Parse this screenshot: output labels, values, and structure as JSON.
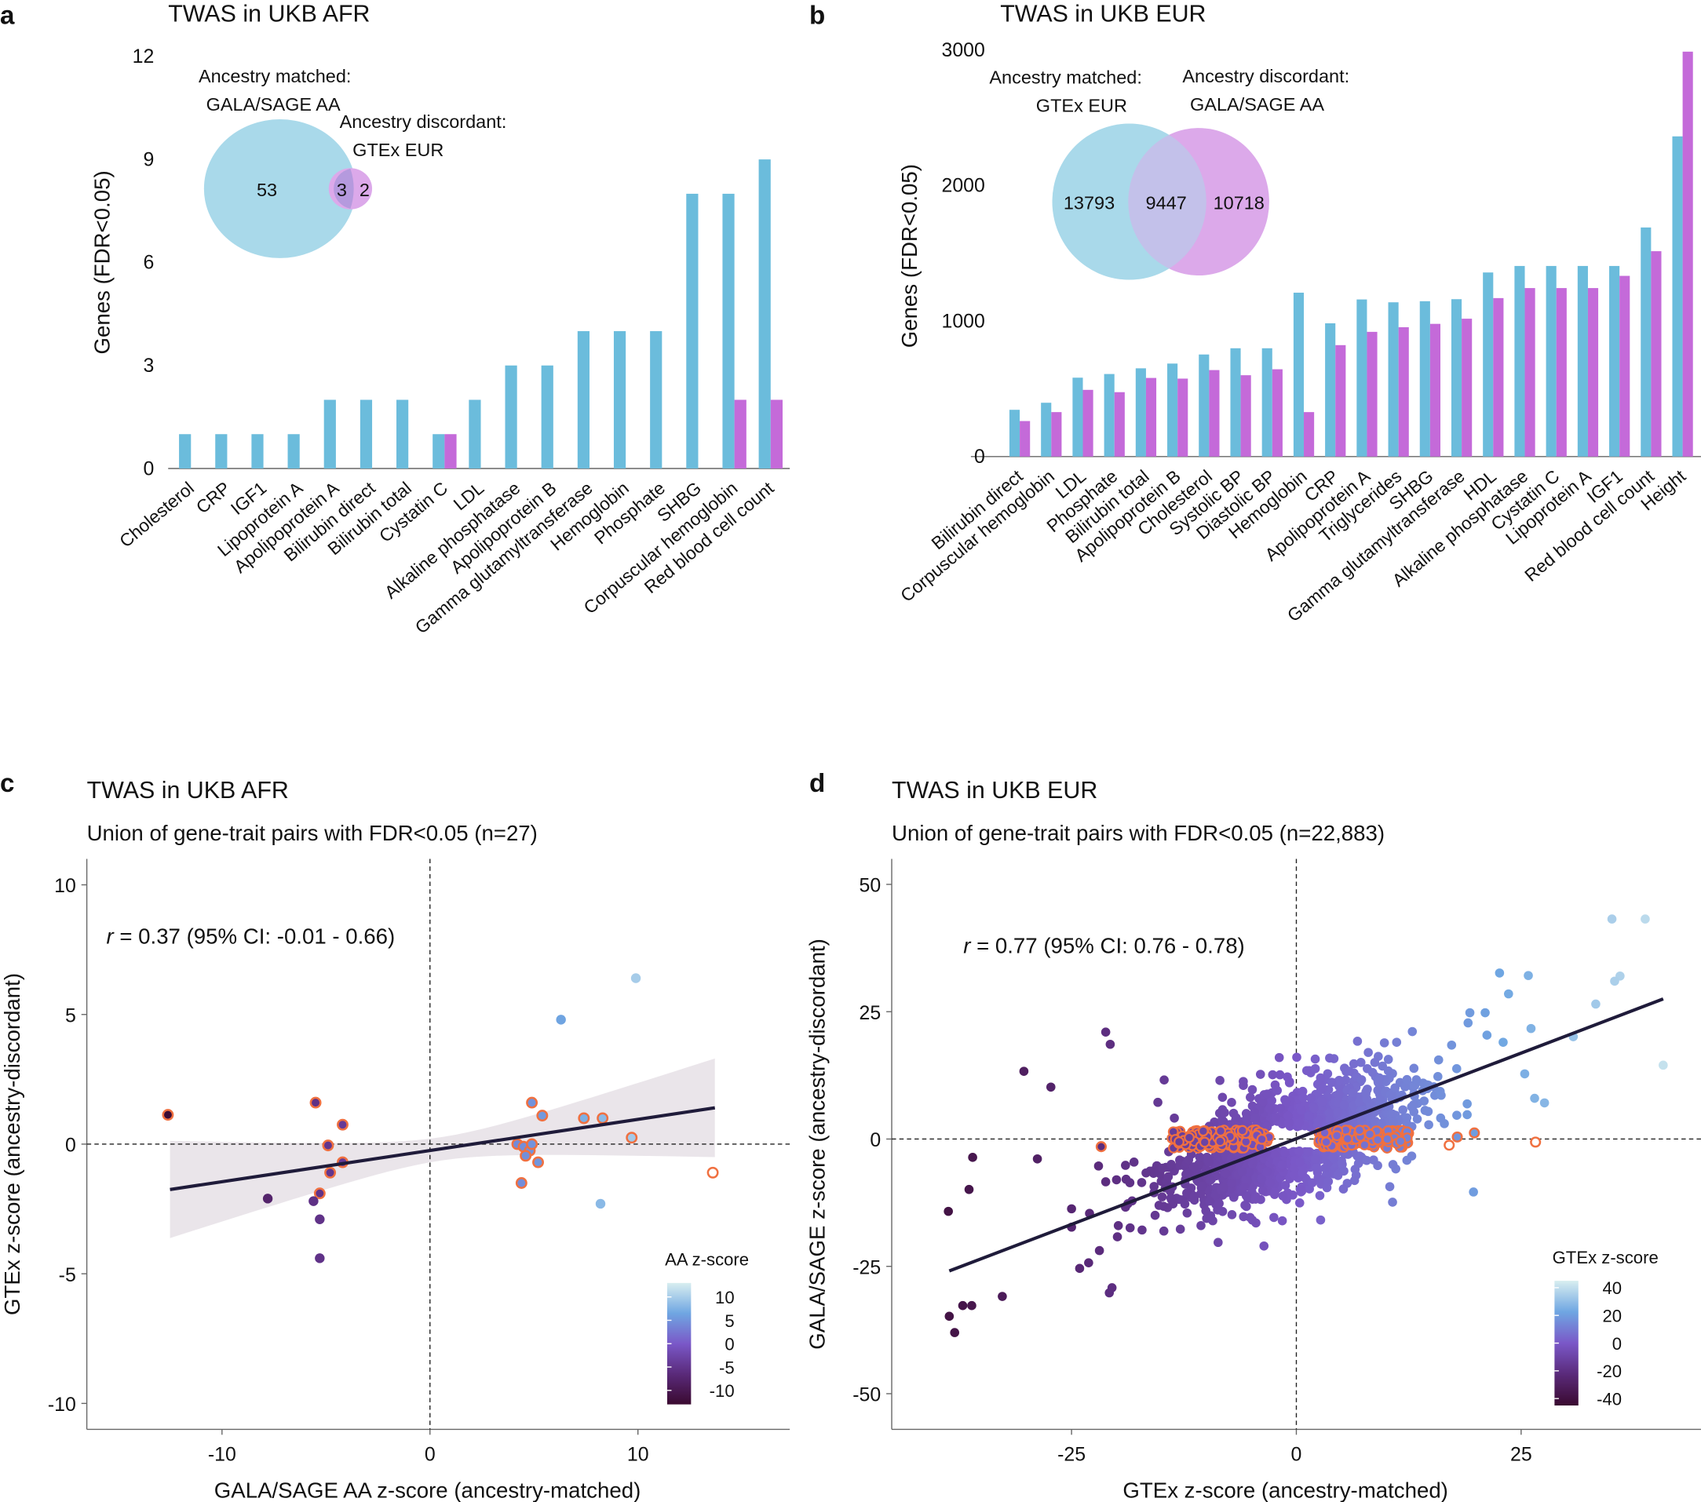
{
  "colors": {
    "matched": "#6bbcdc",
    "discordant": "#c46ad9",
    "venn_matched": "#a9d9ea",
    "venn_discordant": "#dca9ea",
    "venn_overlap": "#b59ade",
    "outline": "#f07040",
    "line": "#1f1b3a",
    "ci_band": "#e6e0e6"
  },
  "colorscale": [
    "#3a0a30",
    "#5a2a7a",
    "#7a58c8",
    "#6fa6e2",
    "#d8eef0"
  ],
  "chart_data": [
    {
      "panel": "a",
      "type": "bar",
      "title": "TWAS in UKB AFR",
      "ylabel": "Genes (FDR<0.05)",
      "xlabel": "",
      "ylim": [
        0,
        12
      ],
      "yticks": [
        "0",
        "3",
        "6",
        "9",
        "12"
      ],
      "categories": [
        "Cholesterol",
        "CRP",
        "IGF1",
        "Lipoprotein A",
        "Apolipoprotein A",
        "Bilirubin direct",
        "Bilirubin total",
        "Cystatin C",
        "LDL",
        "Alkaline phosphatase",
        "Apolipoprotein B",
        "Gamma glutamyltransferase",
        "Hemoglobin",
        "Phosphate",
        "SHBG",
        "Corpuscular hemoglobin",
        "Red blood cell count"
      ],
      "series": [
        {
          "key": "matched",
          "values": [
            1,
            1,
            1,
            1,
            2,
            2,
            2,
            1,
            2,
            3,
            3,
            4,
            4,
            4,
            8,
            8,
            9
          ]
        },
        {
          "key": "discordant",
          "values": [
            0,
            0,
            0,
            0,
            0,
            0,
            0,
            1,
            0,
            0,
            0,
            0,
            0,
            0,
            0,
            2,
            2
          ]
        }
      ],
      "venn": {
        "matched_label": "Ancestry matched:",
        "matched_source": "GALA/SAGE AA",
        "discordant_label": "Ancestry discordant:",
        "discordant_source": "GTEx EUR",
        "matched_only": "53",
        "overlap": "3",
        "discordant_only": "2"
      }
    },
    {
      "panel": "b",
      "type": "bar",
      "title": "TWAS in UKB EUR",
      "ylabel": "Genes (FDR<0.05)",
      "xlabel": "",
      "ylim": [
        0,
        3000
      ],
      "yticks": [
        "0",
        "1000",
        "2000",
        "3000"
      ],
      "categories": [
        "Bilirubin direct",
        "Corpuscular hemoglobin",
        "LDL",
        "Phosphate",
        "Bilirubin total",
        "Apolipoprotein B",
        "Cholesterol",
        "Systolic BP",
        "Diastolic BP",
        "Hemoglobin",
        "CRP",
        "Apolipoprotein A",
        "Triglycerides",
        "SHBG",
        "Gamma glutamyltransferase",
        "HDL",
        "Alkaline phosphatase",
        "Cystatin C",
        "Lipoprotein A",
        "IGF1",
        "Red blood cell count",
        "Height"
      ],
      "series": [
        {
          "key": "matched",
          "values": [
            345,
            397,
            582,
            609,
            651,
            686,
            753,
            799,
            799,
            1209,
            983,
            1159,
            1138,
            1146,
            1161,
            1358,
            1406,
            1406,
            1406,
            1406,
            1690,
            2362
          ]
        },
        {
          "key": "discordant",
          "values": [
            262,
            328,
            492,
            475,
            580,
            575,
            638,
            600,
            644,
            328,
            822,
            920,
            954,
            979,
            1017,
            1169,
            1243,
            1243,
            1243,
            1333,
            1515,
            2987
          ]
        }
      ],
      "venn": {
        "matched_label": "Ancestry matched:",
        "matched_source": "GTEx EUR",
        "discordant_label": "Ancestry discordant:",
        "discordant_source": "GALA/SAGE AA",
        "matched_only": "13793",
        "overlap": "9447",
        "discordant_only": "10718"
      }
    },
    {
      "panel": "c",
      "type": "scatter",
      "title": "TWAS in UKB AFR",
      "subtitle": "Union of gene-trait pairs with FDR<0.05 (n=27)",
      "xlabel": "GALA/SAGE AA  z-score (ancestry-matched)",
      "ylabel": "GTEx  z-score (ancestry-discordant)",
      "xlim": [
        -16.5,
        17.3
      ],
      "ylim": [
        -11,
        11
      ],
      "xticks": [
        -10,
        0,
        10
      ],
      "yticks": [
        10,
        5,
        0,
        -5,
        -10
      ],
      "annotation": {
        "r_label": "r",
        "text": " = 0.37  (95% CI: -0.01 - 0.66)"
      },
      "legend": {
        "title": "AA z-score",
        "ticks": [
          10,
          5,
          0,
          -5,
          -10
        ],
        "range": [
          -13,
          13
        ]
      },
      "regression": {
        "x": [
          -12.5,
          13.7
        ],
        "y": [
          -1.75,
          1.4
        ]
      },
      "points": [
        {
          "x": -12.6,
          "y": 1.13,
          "o": 1
        },
        {
          "x": -5.5,
          "y": 1.6,
          "o": 1
        },
        {
          "x": -4.2,
          "y": 0.75,
          "o": 1
        },
        {
          "x": -4.9,
          "y": -0.05,
          "o": 1
        },
        {
          "x": -4.8,
          "y": -1.1,
          "o": 1
        },
        {
          "x": -4.2,
          "y": -0.7,
          "o": 1
        },
        {
          "x": -5.3,
          "y": -1.9,
          "o": 1
        },
        {
          "x": -7.8,
          "y": -2.1,
          "o": 0
        },
        {
          "x": -5.6,
          "y": -2.2,
          "o": 0
        },
        {
          "x": -5.3,
          "y": -2.9,
          "o": 0
        },
        {
          "x": -5.3,
          "y": -4.4,
          "o": 0
        },
        {
          "x": 9.9,
          "y": 6.4,
          "o": 0
        },
        {
          "x": 6.3,
          "y": 4.8,
          "o": 0
        },
        {
          "x": 4.9,
          "y": 1.6,
          "o": 1
        },
        {
          "x": 5.4,
          "y": 1.1,
          "o": 1
        },
        {
          "x": 7.4,
          "y": 1.0,
          "o": 1
        },
        {
          "x": 8.3,
          "y": 1.0,
          "o": 1
        },
        {
          "x": 9.7,
          "y": 0.25,
          "o": 1
        },
        {
          "x": 4.2,
          "y": 0.0,
          "o": 1
        },
        {
          "x": 4.5,
          "y": -0.1,
          "o": 1
        },
        {
          "x": 4.8,
          "y": -0.25,
          "o": 1
        },
        {
          "x": 4.9,
          "y": 0.0,
          "o": 1
        },
        {
          "x": 4.6,
          "y": -0.45,
          "o": 1
        },
        {
          "x": 5.2,
          "y": -0.7,
          "o": 1
        },
        {
          "x": 4.4,
          "y": -1.5,
          "o": 1
        },
        {
          "x": 8.2,
          "y": -2.3,
          "o": 0
        },
        {
          "x": 13.6,
          "y": -1.1,
          "o": 2
        }
      ]
    },
    {
      "panel": "d",
      "type": "scatter",
      "title": "TWAS in UKB EUR",
      "subtitle": "Union of gene-trait pairs with FDR<0.05 (n=22,883)",
      "xlabel": "GTEx z-score (ancestry-matched)",
      "ylabel": "GALA/SAGE  z-score (ancestry-discordant)",
      "xlim": [
        -45,
        45
      ],
      "ylim": [
        -57,
        55
      ],
      "xticks": [
        -25,
        0,
        25
      ],
      "yticks": [
        50,
        25,
        0,
        -25,
        -50
      ],
      "annotation": {
        "r_label": "r",
        "text": " = 0.77  (95% CI: 0.76 - 0.78)"
      },
      "legend": {
        "title": "GTEx z-score",
        "ticks": [
          40,
          20,
          0,
          -20,
          -40
        ],
        "range": [
          -45,
          45
        ]
      },
      "regression": {
        "x": [
          -38.6,
          40.8
        ],
        "y": [
          -25.9,
          27.5
        ]
      },
      "points": [
        {
          "x": 35.1,
          "y": 43.2,
          "o": 0
        },
        {
          "x": 38.8,
          "y": 43.2,
          "o": 0
        },
        {
          "x": 22.6,
          "y": 32.6,
          "o": 0
        },
        {
          "x": 25.8,
          "y": 32.1,
          "o": 0
        },
        {
          "x": 36.0,
          "y": 32.0,
          "o": 0
        },
        {
          "x": 35.4,
          "y": 31.0,
          "o": 0
        },
        {
          "x": 23.6,
          "y": 28.5,
          "o": 0
        },
        {
          "x": 33.3,
          "y": 26.5,
          "o": 0
        },
        {
          "x": 40.8,
          "y": 14.5,
          "o": 0
        },
        {
          "x": 30.8,
          "y": 20.1,
          "o": 0
        },
        {
          "x": 26.1,
          "y": 21.7,
          "o": 0
        },
        {
          "x": 23.0,
          "y": 19.0,
          "o": 0
        },
        {
          "x": 19.3,
          "y": 24.8,
          "o": 0
        },
        {
          "x": 21.0,
          "y": 24.8,
          "o": 0
        },
        {
          "x": 19.1,
          "y": 22.8,
          "o": 0
        },
        {
          "x": 21.2,
          "y": 20.4,
          "o": 0
        },
        {
          "x": 25.4,
          "y": 12.8,
          "o": 0
        },
        {
          "x": 26.5,
          "y": 8.0,
          "o": 0
        },
        {
          "x": 27.6,
          "y": 7.1,
          "o": 0
        },
        {
          "x": 19.7,
          "y": -10.4,
          "o": 0
        },
        {
          "x": 10.7,
          "y": -12.4,
          "o": 0
        },
        {
          "x": 2.7,
          "y": -15.9,
          "o": 0
        },
        {
          "x": -3.6,
          "y": -21.0,
          "o": 0
        },
        {
          "x": -8.7,
          "y": -20.3,
          "o": 0
        },
        {
          "x": -21.2,
          "y": 21.0,
          "o": 0
        },
        {
          "x": -20.7,
          "y": 18.6,
          "o": 0
        },
        {
          "x": -30.3,
          "y": 13.3,
          "o": 0
        },
        {
          "x": -27.3,
          "y": 10.2,
          "o": 0
        },
        {
          "x": -36.0,
          "y": -3.6,
          "o": 0
        },
        {
          "x": -28.8,
          "y": -3.9,
          "o": 0
        },
        {
          "x": -36.4,
          "y": -9.9,
          "o": 0
        },
        {
          "x": -38.7,
          "y": -14.2,
          "o": 0
        },
        {
          "x": -32.7,
          "y": -30.9,
          "o": 0
        },
        {
          "x": -37.1,
          "y": -32.7,
          "o": 0
        },
        {
          "x": -36.1,
          "y": -32.7,
          "o": 0
        },
        {
          "x": -38.6,
          "y": -34.8,
          "o": 0
        },
        {
          "x": -38.0,
          "y": -38.0,
          "o": 0
        },
        {
          "x": -25.0,
          "y": -13.7,
          "o": 0
        },
        {
          "x": -23.0,
          "y": -14.6,
          "o": 0
        },
        {
          "x": -25.0,
          "y": -17.3,
          "o": 0
        },
        {
          "x": -22.0,
          "y": -5.3,
          "o": 0
        },
        {
          "x": -21.2,
          "y": -8.4,
          "o": 0
        },
        {
          "x": -20.0,
          "y": -8.0,
          "o": 0
        },
        {
          "x": -24.1,
          "y": -25.4,
          "o": 0
        },
        {
          "x": -23.1,
          "y": -24.3,
          "o": 0
        },
        {
          "x": -21.9,
          "y": -21.9,
          "o": 0
        },
        {
          "x": -20.8,
          "y": -30.2,
          "o": 0
        },
        {
          "x": -20.5,
          "y": -29.2,
          "o": 0
        },
        {
          "x": -19.8,
          "y": -17.0,
          "o": 0
        },
        {
          "x": -19.9,
          "y": -19.2,
          "o": 0
        },
        {
          "x": -1.9,
          "y": 16.0,
          "o": 0
        },
        {
          "x": 2.1,
          "y": 15.7,
          "o": 0
        },
        {
          "x": 3.7,
          "y": 15.9,
          "o": 0
        },
        {
          "x": 6.8,
          "y": 19.2,
          "o": 0
        },
        {
          "x": 8.0,
          "y": 17.0,
          "o": 0
        },
        {
          "x": 12.9,
          "y": 21.1,
          "o": 0
        },
        {
          "x": -14.7,
          "y": 11.6,
          "o": 0
        },
        {
          "x": -8.5,
          "y": 11.5,
          "o": 0
        },
        {
          "x": -5.9,
          "y": 11.3,
          "o": 0
        },
        {
          "x": -15.4,
          "y": 7.2,
          "o": 0
        },
        {
          "x": -21.7,
          "y": -1.5,
          "o": 1
        },
        {
          "x": 17.0,
          "y": -1.2,
          "o": 2
        },
        {
          "x": 17.9,
          "y": 0.4,
          "o": 1
        },
        {
          "x": 19.8,
          "y": 1.2,
          "o": 1
        },
        {
          "x": 26.6,
          "y": -0.6,
          "o": 2
        }
      ]
    }
  ]
}
